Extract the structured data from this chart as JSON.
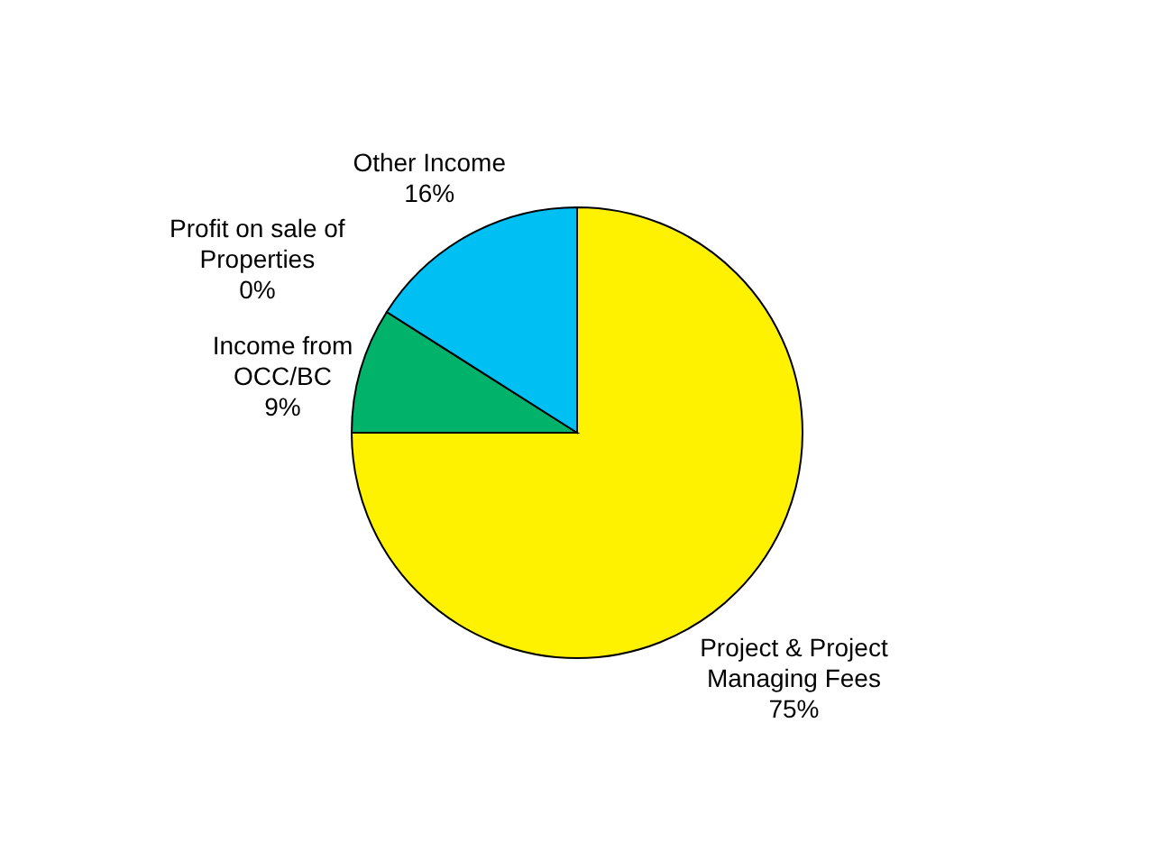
{
  "chart_data": {
    "type": "pie",
    "categories": [
      "Project & Project Managing Fees",
      "Income from OCC/BC",
      "Profit on sale of Properties",
      "Other Income"
    ],
    "values": [
      75,
      9,
      0,
      16
    ],
    "value_labels": [
      "75%",
      "9%",
      "0%",
      "16%"
    ],
    "colors": [
      "#fff200",
      "#00b26a",
      "#ed1c24",
      "#00bff3"
    ],
    "legend": false
  }
}
